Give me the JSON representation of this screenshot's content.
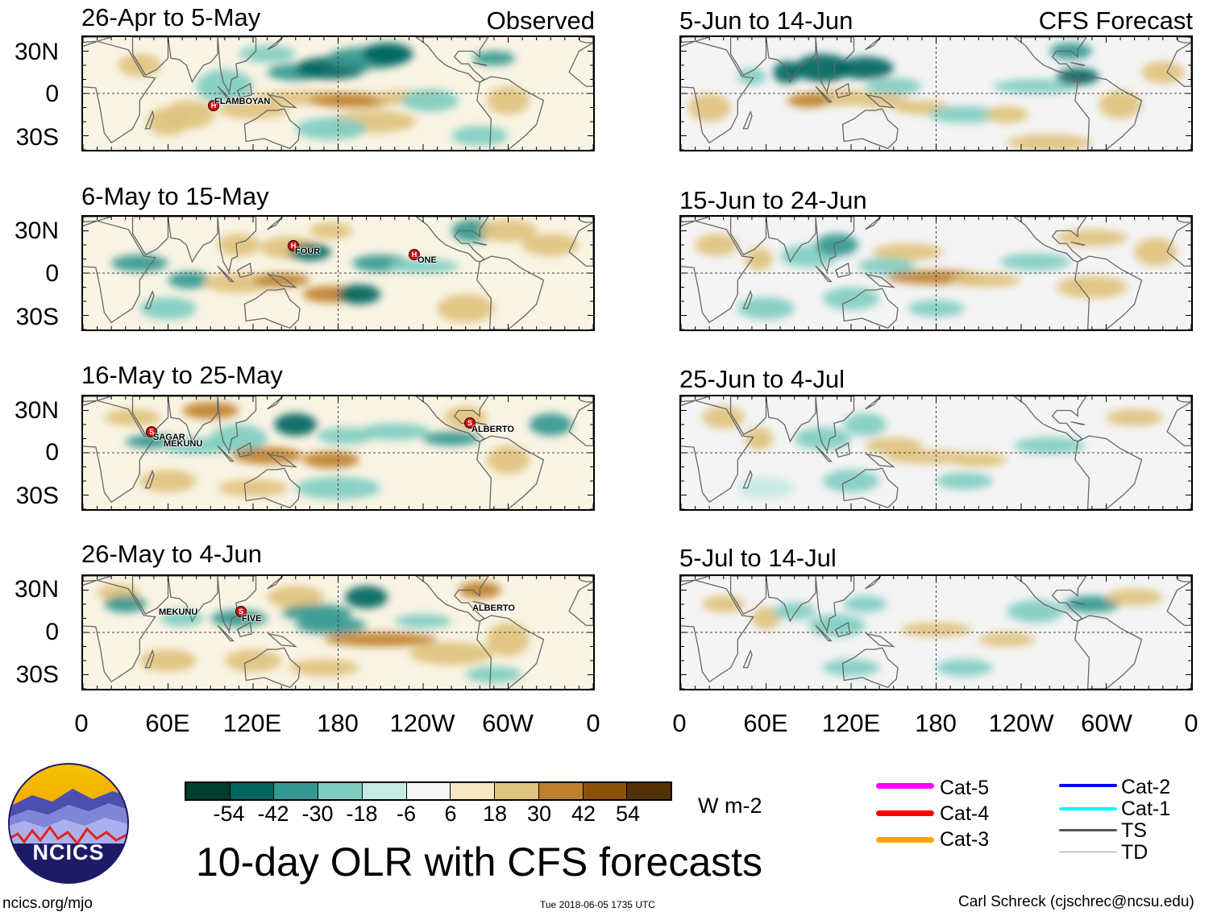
{
  "figure_title": "10-day OLR with CFS forecasts",
  "observed_tag": "Observed",
  "forecast_tag": "CFS Forecast",
  "footer": {
    "left": "ncics.org/mjo",
    "center": "Tue 2018-06-05 1735 UTC",
    "right": "Carl Schreck (cjschrec@ncsu.edu)"
  },
  "logo_text": "NCICS",
  "colorbar": {
    "units": "W m-2",
    "tick_labels": [
      "-54",
      "-42",
      "-30",
      "-18",
      "-6",
      "6",
      "18",
      "30",
      "42",
      "54"
    ],
    "colors": [
      "#003c30",
      "#01665e",
      "#35978f",
      "#80cdc1",
      "#c7eae5",
      "#f5f5f5",
      "#f6e8c3",
      "#dfc27d",
      "#bf812d",
      "#8c510a",
      "#543005"
    ]
  },
  "legend": [
    {
      "label": "Cat-5",
      "color": "#ff00ff"
    },
    {
      "label": "Cat-4",
      "color": "#ff0000"
    },
    {
      "label": "Cat-3",
      "color": "#ffa500"
    },
    {
      "label": "Cat-2",
      "color": "#0000ff"
    },
    {
      "label": "Cat-1",
      "color": "#00ffff"
    },
    {
      "label": "TS",
      "color": "#555555"
    },
    {
      "label": "TD",
      "color": "#999999"
    }
  ],
  "axes": {
    "y_ticks": [
      "30N",
      "0",
      "30S"
    ],
    "x_ticks": [
      "0",
      "60E",
      "120E",
      "180",
      "120W",
      "60W",
      "0"
    ]
  },
  "storms": {
    "p0": [
      {
        "name": "FLAMBOYAN",
        "cat": "H"
      }
    ],
    "p1": [
      {
        "name": "FOUR",
        "cat": "H"
      },
      {
        "name": "ONE",
        "cat": "H"
      }
    ],
    "p2": [
      {
        "name": "SAGAR",
        "cat": "S"
      },
      {
        "name": "MEKUNU",
        "cat": ""
      },
      {
        "name": "ALBERTO",
        "cat": "S"
      }
    ],
    "p3": [
      {
        "name": "MEKUNU",
        "cat": ""
      },
      {
        "name": "FIVE",
        "cat": "S"
      },
      {
        "name": "ALBERTO",
        "cat": ""
      }
    ]
  },
  "chart_data": [
    {
      "type": "heatmap",
      "title": "26-Apr to 5-May",
      "group": "Observed",
      "variable": "OLR anomaly",
      "units": "W m-2",
      "x_range": [
        "0",
        "360"
      ],
      "y_range": [
        "40S",
        "40N"
      ]
    },
    {
      "type": "heatmap",
      "title": "6-May to 15-May",
      "group": "Observed",
      "variable": "OLR anomaly",
      "units": "W m-2",
      "x_range": [
        "0",
        "360"
      ],
      "y_range": [
        "40S",
        "40N"
      ]
    },
    {
      "type": "heatmap",
      "title": "16-May to 25-May",
      "group": "Observed",
      "variable": "OLR anomaly",
      "units": "W m-2",
      "x_range": [
        "0",
        "360"
      ],
      "y_range": [
        "40S",
        "40N"
      ]
    },
    {
      "type": "heatmap",
      "title": "26-May to 4-Jun",
      "group": "Observed",
      "variable": "OLR anomaly",
      "units": "W m-2",
      "x_range": [
        "0",
        "360"
      ],
      "y_range": [
        "40S",
        "40N"
      ]
    },
    {
      "type": "heatmap",
      "title": "5-Jun to 14-Jun",
      "group": "CFS Forecast",
      "variable": "OLR anomaly",
      "units": "W m-2",
      "x_range": [
        "0",
        "360"
      ],
      "y_range": [
        "40S",
        "40N"
      ]
    },
    {
      "type": "heatmap",
      "title": "15-Jun to 24-Jun",
      "group": "CFS Forecast",
      "variable": "OLR anomaly",
      "units": "W m-2",
      "x_range": [
        "0",
        "360"
      ],
      "y_range": [
        "40S",
        "40N"
      ]
    },
    {
      "type": "heatmap",
      "title": "25-Jun to 4-Jul",
      "group": "CFS Forecast",
      "variable": "OLR anomaly",
      "units": "W m-2",
      "x_range": [
        "0",
        "360"
      ],
      "y_range": [
        "40S",
        "40N"
      ]
    },
    {
      "type": "heatmap",
      "title": "5-Jul to 14-Jul",
      "group": "CFS Forecast",
      "variable": "OLR anomaly",
      "units": "W m-2",
      "x_range": [
        "0",
        "360"
      ],
      "y_range": [
        "40S",
        "40N"
      ]
    }
  ]
}
